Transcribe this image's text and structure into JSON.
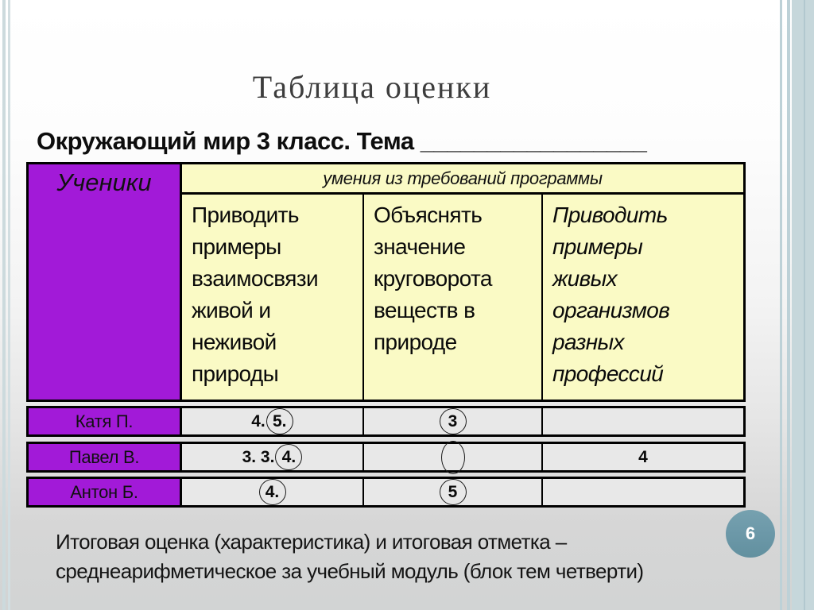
{
  "slide": {
    "title": "Таблица оценки",
    "subtitle": "Окружающий мир 3 класс. Тема _________________",
    "page_number": "6",
    "footer_lines": [
      "Итоговая оценка (характеристика) и итоговая отметка –",
      "среднеарифметическое за учебный модуль (блок тем четверти)"
    ]
  },
  "table": {
    "students_header": "Ученики",
    "skills_header": "умения из требований программы",
    "columns": [
      {
        "label": "Приводить примеры взаимосвязи живой и неживой природы",
        "lines": [
          "Приводить",
          "примеры",
          "взаимосвязи",
          "живой и",
          "неживой",
          "природы"
        ]
      },
      {
        "label": "Объяснять значение круговорота веществ в природе",
        "lines": [
          "Объяснять",
          "значение",
          "круговорота",
          "веществ в",
          "природе"
        ]
      },
      {
        "label": "Приводить примеры живых организмов разных профессий",
        "lines": [
          "Приводить",
          "примеры",
          "живых",
          "организмов",
          "разных",
          "профессий"
        ]
      }
    ],
    "rows": [
      {
        "student": "Катя П.",
        "cells": [
          {
            "prefix": "4.",
            "circled": "5."
          },
          {
            "prefix": "",
            "circled": "3"
          },
          {
            "prefix": "",
            "circled": null
          }
        ]
      },
      {
        "student": "Павел В.",
        "cells": [
          {
            "prefix": "3. 3.",
            "circled": "4."
          },
          {
            "prefix": "",
            "circled": ""
          },
          {
            "prefix": "4",
            "circled": null
          }
        ]
      },
      {
        "student": "Антон Б.",
        "cells": [
          {
            "prefix": "",
            "circled": "4."
          },
          {
            "prefix": "",
            "circled": "5"
          },
          {
            "prefix": "",
            "circled": null
          }
        ]
      }
    ]
  },
  "colors": {
    "student_cell_purple": "#a21ad8",
    "header_yellow": "#fafac5",
    "row_gray": "#e8e8e8",
    "badge_teal": "#6d99a9",
    "edge_stripe_blue": "#c6d7db"
  }
}
